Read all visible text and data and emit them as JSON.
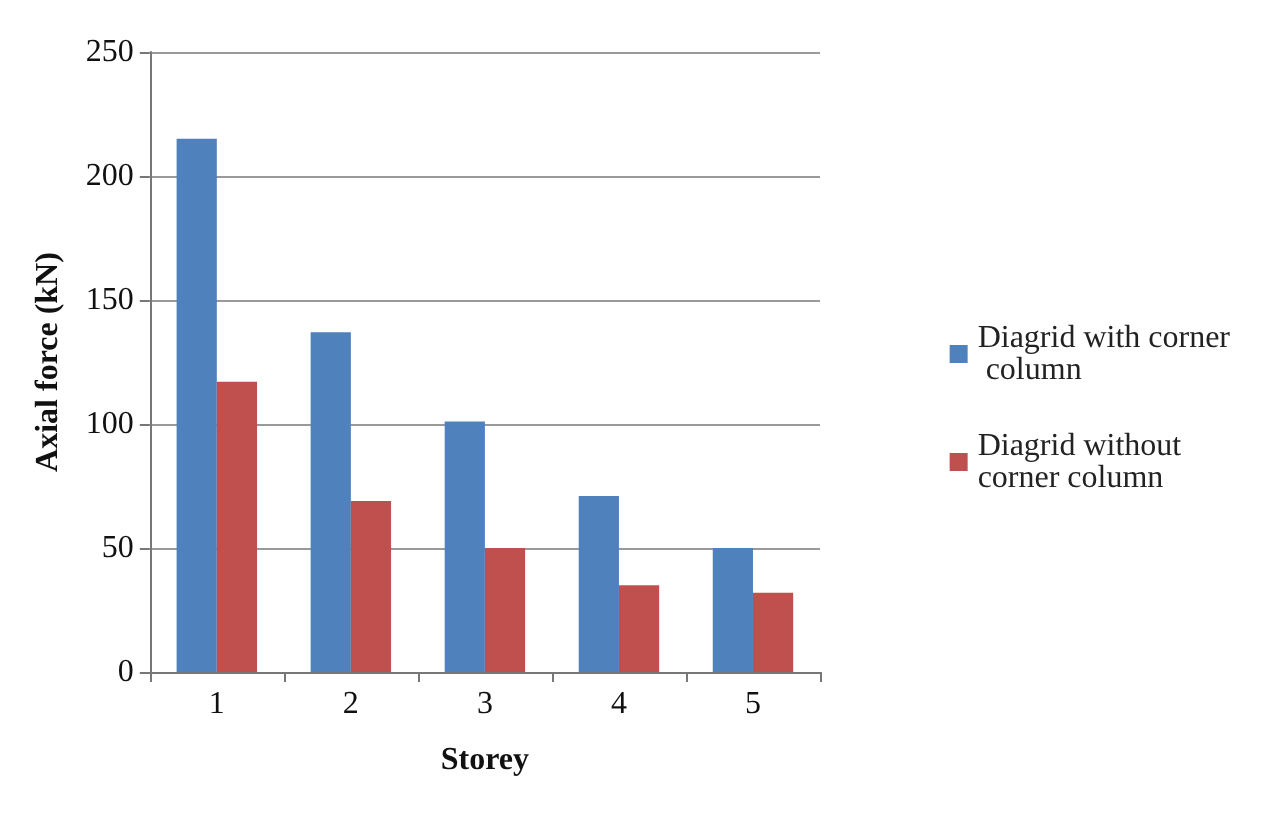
{
  "chart_data": {
    "type": "bar",
    "xlabel": "Storey",
    "ylabel": "Axial force (kN)",
    "categories": [
      "1",
      "2",
      "3",
      "4",
      "5"
    ],
    "series": [
      {
        "name": "Diagrid with corner  column",
        "color": "#4f81bd",
        "values": [
          215,
          137,
          101,
          71,
          50
        ]
      },
      {
        "name": "Diagrid without corner column",
        "color": "#c0504d",
        "values": [
          117,
          69,
          50,
          35,
          32
        ]
      }
    ],
    "ylim": [
      0,
      250
    ],
    "yticks": [
      0,
      50,
      100,
      150,
      200,
      250
    ],
    "grid": "y",
    "legend": "right"
  }
}
